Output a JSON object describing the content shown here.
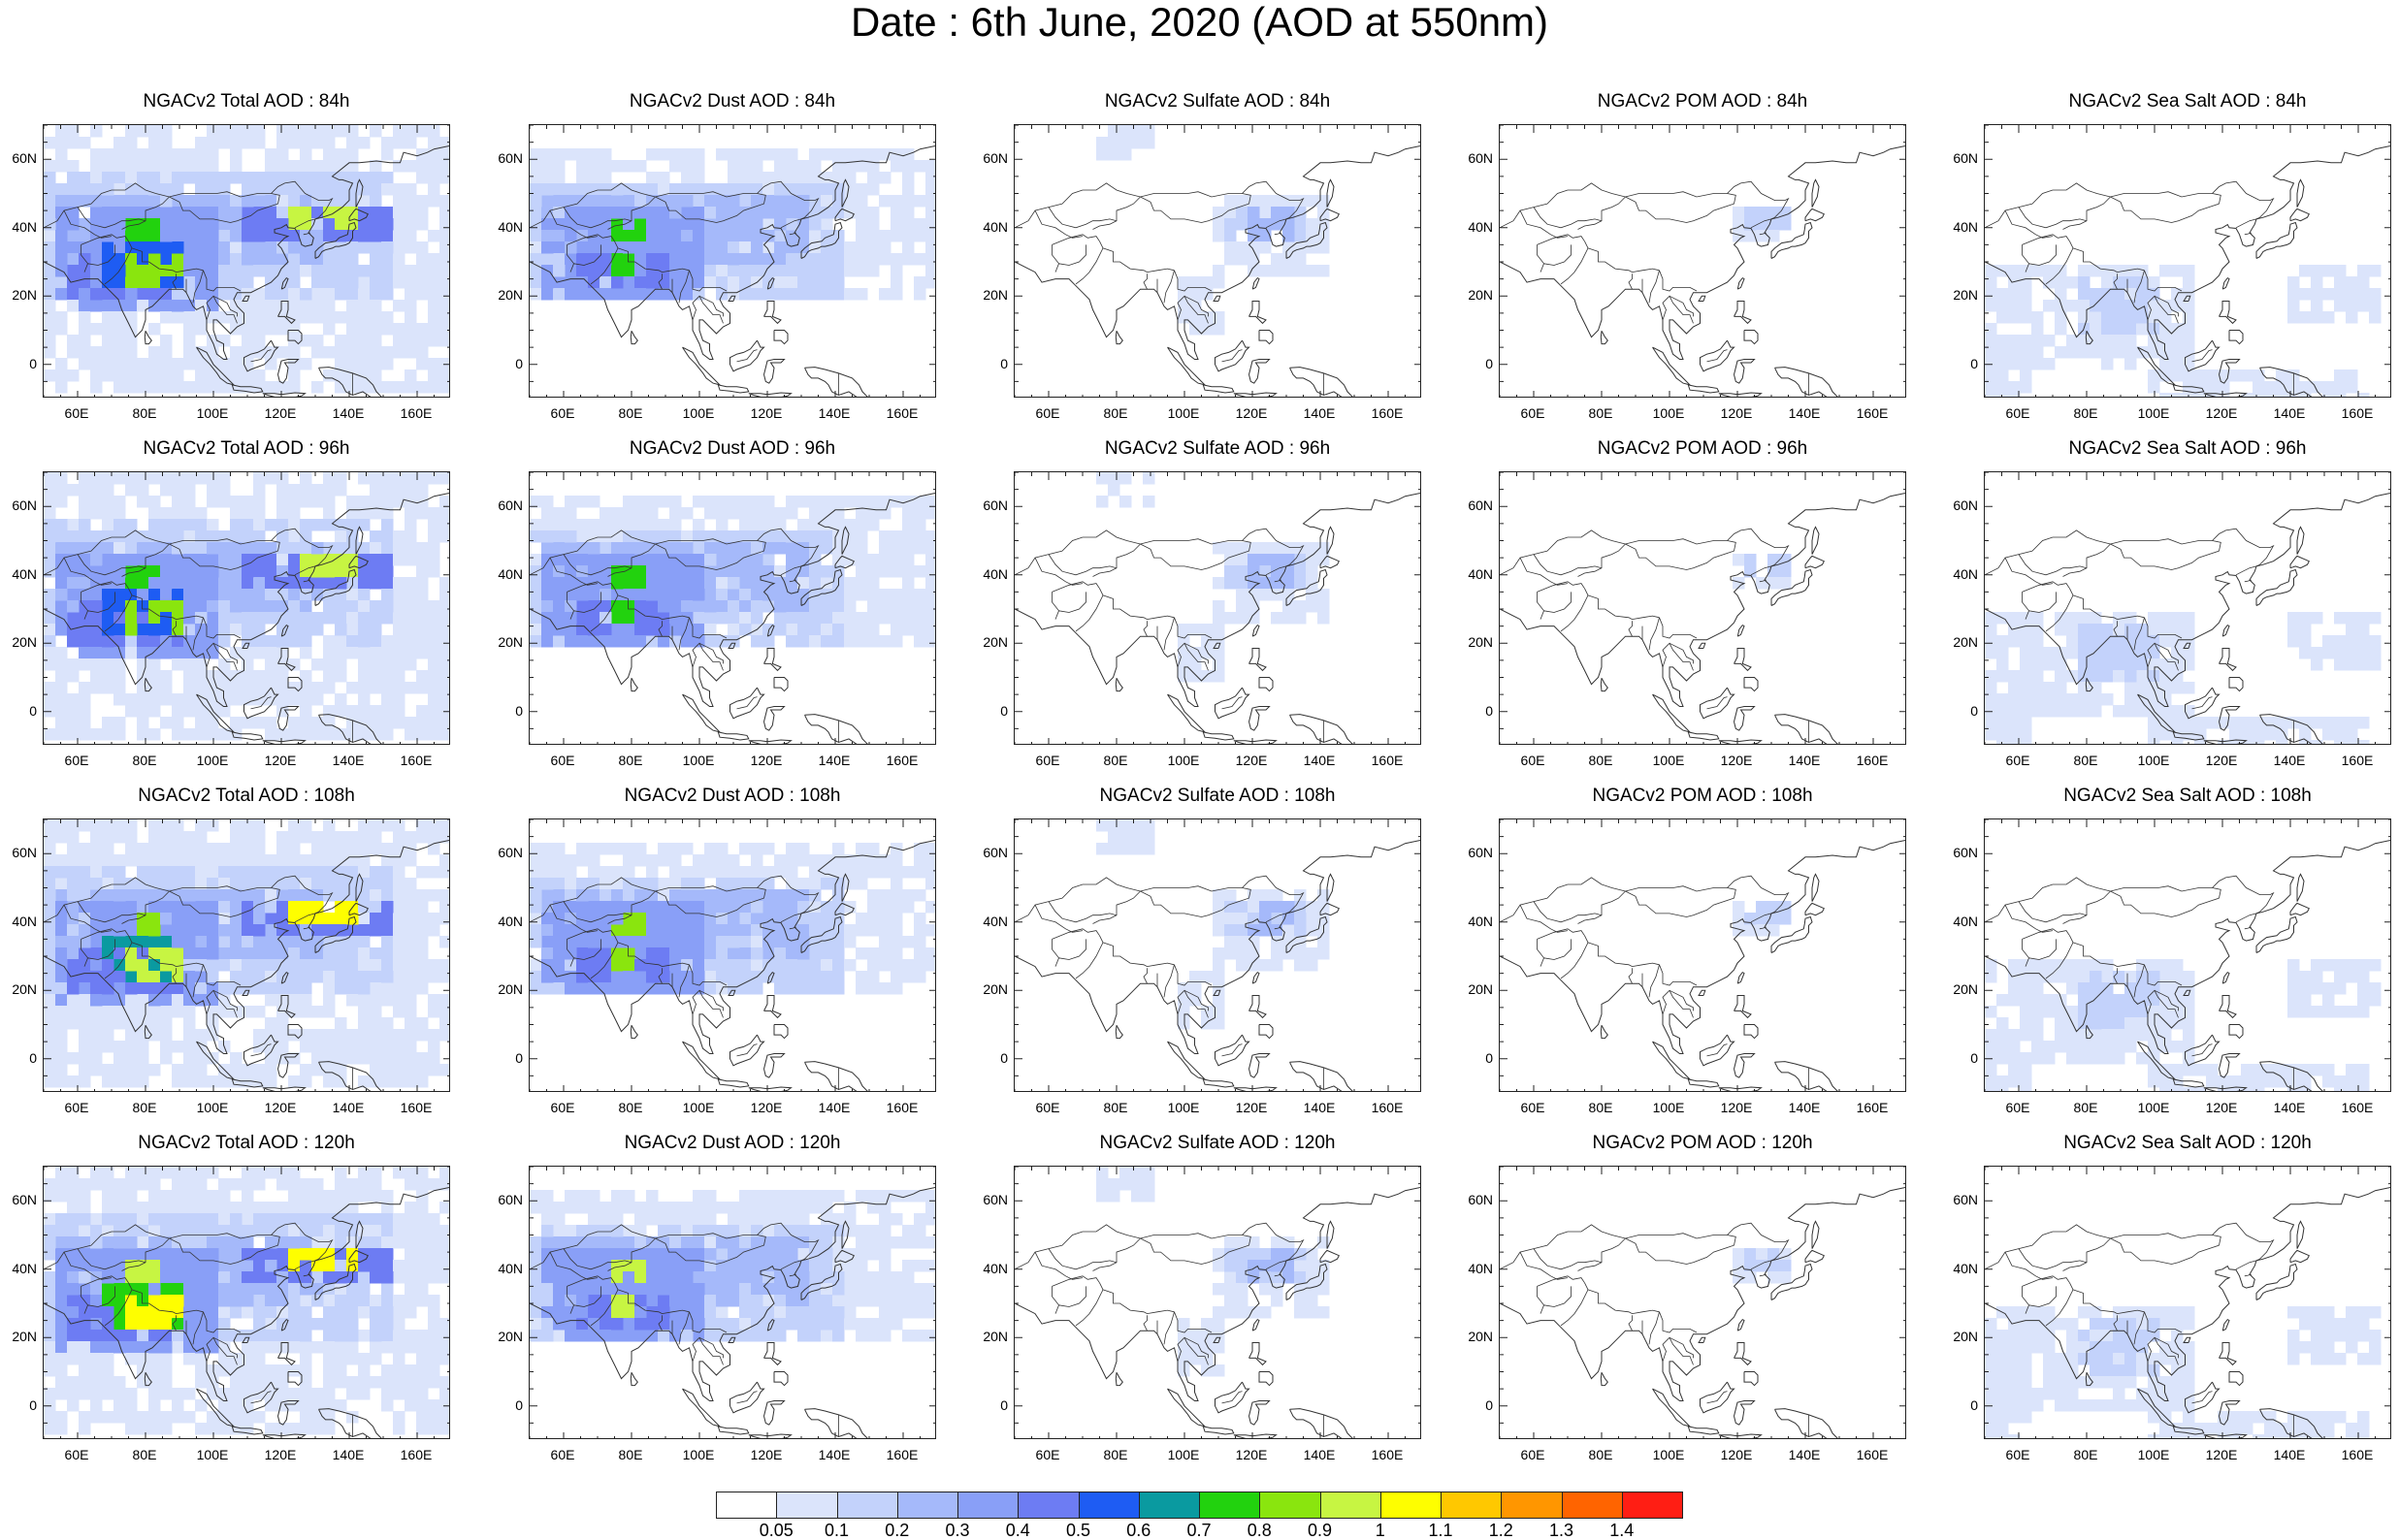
{
  "figure": {
    "title": "Date : 6th June, 2020 (AOD at 550nm)"
  },
  "panels": [
    {
      "title": "NGACv2 Total AOD : 84h",
      "species": "total",
      "forecast_hour": 84
    },
    {
      "title": "NGACv2 Dust AOD : 84h",
      "species": "dust",
      "forecast_hour": 84
    },
    {
      "title": "NGACv2 Sulfate AOD : 84h",
      "species": "sulfate",
      "forecast_hour": 84
    },
    {
      "title": "NGACv2 POM AOD : 84h",
      "species": "pom",
      "forecast_hour": 84
    },
    {
      "title": "NGACv2 Sea Salt AOD : 84h",
      "species": "seasalt",
      "forecast_hour": 84
    },
    {
      "title": "NGACv2 Total AOD : 96h",
      "species": "total",
      "forecast_hour": 96
    },
    {
      "title": "NGACv2 Dust AOD : 96h",
      "species": "dust",
      "forecast_hour": 96
    },
    {
      "title": "NGACv2 Sulfate AOD : 96h",
      "species": "sulfate",
      "forecast_hour": 96
    },
    {
      "title": "NGACv2 POM AOD : 96h",
      "species": "pom",
      "forecast_hour": 96
    },
    {
      "title": "NGACv2 Sea Salt AOD : 96h",
      "species": "seasalt",
      "forecast_hour": 96
    },
    {
      "title": "NGACv2 Total AOD : 108h",
      "species": "total",
      "forecast_hour": 108
    },
    {
      "title": "NGACv2 Dust AOD : 108h",
      "species": "dust",
      "forecast_hour": 108
    },
    {
      "title": "NGACv2 Sulfate AOD : 108h",
      "species": "sulfate",
      "forecast_hour": 108
    },
    {
      "title": "NGACv2 POM AOD : 108h",
      "species": "pom",
      "forecast_hour": 108
    },
    {
      "title": "NGACv2 Sea Salt AOD : 108h",
      "species": "seasalt",
      "forecast_hour": 108
    },
    {
      "title": "NGACv2 Total AOD : 120h",
      "species": "total",
      "forecast_hour": 120
    },
    {
      "title": "NGACv2 Dust AOD : 120h",
      "species": "dust",
      "forecast_hour": 120
    },
    {
      "title": "NGACv2 Sulfate AOD : 120h",
      "species": "sulfate",
      "forecast_hour": 120
    },
    {
      "title": "NGACv2 POM AOD : 120h",
      "species": "pom",
      "forecast_hour": 120
    },
    {
      "title": "NGACv2 Sea Salt  AOD : 120h",
      "species": "seasalt",
      "forecast_hour": 120
    }
  ],
  "axes": {
    "lat_ticks": [
      "60N",
      "40N",
      "20N",
      "0"
    ],
    "lat_values": [
      60,
      40,
      20,
      0
    ],
    "lat_range": [
      -10,
      70
    ],
    "lon_ticks": [
      "60E",
      "80E",
      "100E",
      "120E",
      "140E",
      "160E"
    ],
    "lon_values": [
      60,
      80,
      100,
      120,
      140,
      160
    ],
    "lon_range": [
      50,
      170
    ]
  },
  "colorbar": {
    "labels": [
      "0.05",
      "0.1",
      "0.2",
      "0.3",
      "0.4",
      "0.5",
      "0.6",
      "0.7",
      "0.8",
      "0.9",
      "1",
      "1.1",
      "1.2",
      "1.3",
      "1.4"
    ],
    "colors": [
      "#ffffff",
      "#dbe4fb",
      "#c3d2fb",
      "#a5b9fa",
      "#899ff7",
      "#6d7cf3",
      "#1e5cf3",
      "#0a9aa0",
      "#22d20e",
      "#8ae50e",
      "#c7f542",
      "#fefe00",
      "#ffc800",
      "#ff9600",
      "#ff6400",
      "#ff1e14"
    ]
  },
  "colors": {
    "coast": "#333333",
    "frame": "#222222"
  }
}
